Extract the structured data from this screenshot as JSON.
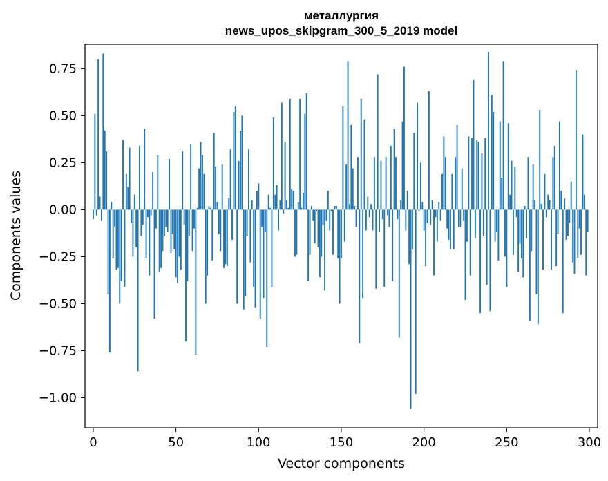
{
  "chart_data": {
    "type": "bar",
    "title": "металлургия",
    "subtitle": "news_upos_skipgram_300_5_2019 model",
    "xlabel": "Vector components",
    "ylabel": "Components values",
    "xlim": [
      -5,
      305
    ],
    "ylim": [
      -1.16,
      0.88
    ],
    "xticks": [
      0,
      50,
      100,
      150,
      200,
      250,
      300
    ],
    "xtick_labels": [
      "0",
      "50",
      "100",
      "150",
      "200",
      "250",
      "300"
    ],
    "yticks": [
      0.75,
      0.5,
      0.25,
      0.0,
      -0.25,
      -0.5,
      -0.75,
      -1.0
    ],
    "ytick_labels": [
      "0.75",
      "0.50",
      "0.25",
      "0.00",
      "−0.25",
      "−0.50",
      "−0.75",
      "−1.00"
    ],
    "grid": false,
    "bar_color": "#1f77b4",
    "values": [
      -0.05,
      0.51,
      -0.03,
      0.8,
      0.07,
      -0.06,
      0.83,
      0.42,
      0.31,
      -0.45,
      -0.76,
      0.04,
      -0.26,
      -0.09,
      -0.32,
      -0.31,
      -0.5,
      -0.38,
      0.37,
      -0.41,
      0.19,
      0.12,
      0.33,
      -0.07,
      -0.25,
      0.08,
      -0.2,
      -0.86,
      0.34,
      -0.14,
      -0.08,
      0.43,
      -0.26,
      -0.04,
      -0.35,
      -0.03,
      0.2,
      -0.58,
      -0.1,
      0.29,
      -0.33,
      -0.31,
      -0.22,
      -0.14,
      -0.09,
      -0.12,
      0.27,
      -0.23,
      -0.13,
      -0.21,
      -0.36,
      -0.39,
      -0.25,
      -0.32,
      0.31,
      -0.08,
      -0.7,
      -0.38,
      -0.14,
      0.35,
      -0.22,
      -0.1,
      -0.77,
      0.01,
      0.22,
      0.36,
      0.29,
      0.19,
      -0.5,
      -0.35,
      0.02,
      0.01,
      -0.27,
      0.41,
      0.23,
      0.04,
      -0.13,
      -0.22,
      0.24,
      -0.31,
      -0.29,
      -0.3,
      0.06,
      0.32,
      -0.16,
      0.52,
      0.55,
      -0.5,
      0.26,
      0.42,
      0.5,
      -0.53,
      -0.46,
      -0.14,
      0.32,
      -0.28,
      0.05,
      -0.41,
      -0.52,
      0.1,
      0.14,
      -0.58,
      -0.09,
      -0.47,
      -0.12,
      -0.73,
      0.08,
      0.01,
      -0.41,
      0.49,
      0.08,
      0.13,
      -0.11,
      0.05,
      0.57,
      -0.02,
      0.36,
      0.05,
      0.01,
      0.59,
      0.11,
      0.1,
      -0.25,
      -0.24,
      0.04,
      0.59,
      0.01,
      0.09,
      0.51,
      0.62,
      -0.38,
      -0.24,
      0.02,
      -0.06,
      -0.18,
      -0.01,
      -0.2,
      -0.36,
      -0.25,
      -0.08,
      -0.43,
      -0.06,
      0.1,
      -0.11,
      -0.01,
      -0.24,
      0.02,
      0.02,
      -0.26,
      -0.5,
      -0.26,
      0.55,
      -0.17,
      0.24,
      0.79,
      0.03,
      0.45,
      0.22,
      0.02,
      -0.09,
      0.28,
      -0.71,
      0.59,
      -0.47,
      0.48,
      -0.11,
      0.07,
      -0.04,
      0.03,
      -0.11,
      0.28,
      -0.42,
      0.72,
      -0.12,
      0.26,
      -0.05,
      -0.41,
      0.28,
      -0.03,
      -0.09,
      0.34,
      -0.38,
      0.43,
      0.28,
      -0.05,
      -0.68,
      0.05,
      0.47,
      0.76,
      -0.11,
      0.1,
      -0.29,
      -1.06,
      -0.21,
      0.41,
      -0.98,
      0.57,
      -0.01,
      0.25,
      0.04,
      -0.11,
      -0.3,
      -0.07,
      0.63,
      -0.08,
      0.05,
      -0.35,
      -0.04,
      -0.17,
      0.04,
      -0.06,
      0.19,
      0.39,
      0.28,
      -0.1,
      -0.16,
      -0.21,
      0.19,
      -0.21,
      0.28,
      0.45,
      -0.09,
      -0.09,
      0.22,
      -0.06,
      -0.48,
      -0.17,
      0.39,
      -0.35,
      0.38,
      0.69,
      -0.15,
      0.37,
      0.36,
      -0.55,
      0.3,
      -0.14,
      0.38,
      -0.4,
      0.84,
      -0.54,
      0.61,
      0.52,
      -0.17,
      -0.12,
      -0.27,
      0.47,
      0.17,
      0.79,
      -0.25,
      -0.41,
      0.46,
      0.08,
      0.26,
      -0.24,
      0.23,
      -0.04,
      -0.33,
      -0.18,
      -0.26,
      -0.36,
      0.02,
      -0.15,
      0.28,
      -0.59,
      -0.22,
      0.24,
      0.05,
      -0.45,
      -0.61,
      0.53,
      0.03,
      -0.32,
      0.19,
      -0.04,
      0.08,
      0.05,
      -0.32,
      0.28,
      0.34,
      -0.3,
      -0.13,
      0.47,
      0.1,
      -0.55,
      0.06,
      -0.16,
      -0.14,
      -0.07,
      0.15,
      -0.28,
      -0.34,
      0.74,
      -0.26,
      -0.1,
      -0.24,
      0.4,
      0.08,
      -0.35,
      -0.12
    ]
  }
}
